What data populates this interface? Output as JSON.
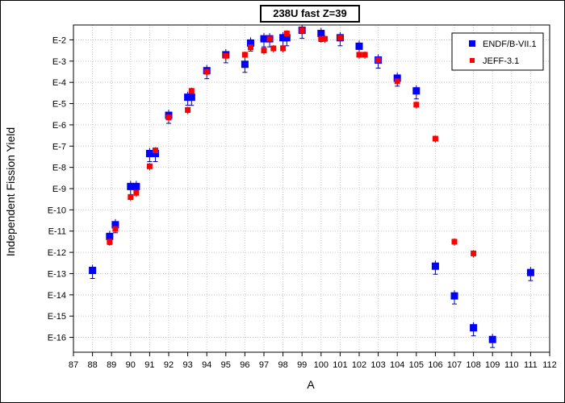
{
  "chart_data": {
    "type": "scatter",
    "title": "238U fast Z=39",
    "xlabel": "A",
    "ylabel": "Independent Fission Yield",
    "xlim": [
      87,
      112
    ],
    "ylim_log10": [
      -16.7,
      -1.3
    ],
    "y_scale": "log",
    "x_ticks": [
      "87",
      "88",
      "89",
      "90",
      "91",
      "92",
      "93",
      "94",
      "95",
      "96",
      "97",
      "98",
      "99",
      "100",
      "101",
      "102",
      "103",
      "104",
      "105",
      "106",
      "107",
      "108",
      "109",
      "110",
      "111",
      "112"
    ],
    "y_ticks": [
      "E-2",
      "E-3",
      "E-4",
      "E-5",
      "E-6",
      "E-7",
      "E-8",
      "E-9",
      "E-10",
      "E-11",
      "E-12",
      "E-13",
      "E-14",
      "E-15",
      "E-16"
    ],
    "legend_position": "top-right",
    "grid": true,
    "series": [
      {
        "name": "ENDF/B-VII.1",
        "color": "#0000ff",
        "marker": "square",
        "points": [
          {
            "x": 88,
            "log10y": -12.85
          },
          {
            "x": 88.9,
            "log10y": -11.25
          },
          {
            "x": 89.2,
            "log10y": -10.7
          },
          {
            "x": 90,
            "log10y": -8.9
          },
          {
            "x": 90.3,
            "log10y": -8.9
          },
          {
            "x": 91,
            "log10y": -7.35
          },
          {
            "x": 91.3,
            "log10y": -7.35
          },
          {
            "x": 92,
            "log10y": -5.55
          },
          {
            "x": 93,
            "log10y": -4.7
          },
          {
            "x": 93.2,
            "log10y": -4.7
          },
          {
            "x": 94,
            "log10y": -3.45
          },
          {
            "x": 95,
            "log10y": -2.7
          },
          {
            "x": 96,
            "log10y": -3.15
          },
          {
            "x": 96.3,
            "log10y": -2.15
          },
          {
            "x": 97,
            "log10y": -1.95
          },
          {
            "x": 97.3,
            "log10y": -1.95
          },
          {
            "x": 98,
            "log10y": -1.9
          },
          {
            "x": 98.2,
            "log10y": -1.9
          },
          {
            "x": 99,
            "log10y": -1.55
          },
          {
            "x": 100,
            "log10y": -1.7
          },
          {
            "x": 101,
            "log10y": -1.9
          },
          {
            "x": 102,
            "log10y": -2.3
          },
          {
            "x": 103,
            "log10y": -2.95
          },
          {
            "x": 104,
            "log10y": -3.8
          },
          {
            "x": 105,
            "log10y": -4.4
          },
          {
            "x": 106,
            "log10y": -12.65
          },
          {
            "x": 107,
            "log10y": -14.05
          },
          {
            "x": 108,
            "log10y": -15.55
          },
          {
            "x": 109,
            "log10y": -16.1
          },
          {
            "x": 111,
            "log10y": -12.95
          }
        ]
      },
      {
        "name": "JEFF-3.1",
        "color": "#ff0000",
        "marker": "square",
        "points": [
          {
            "x": 88.9,
            "log10y": -11.5
          },
          {
            "x": 89.2,
            "log10y": -10.9
          },
          {
            "x": 90,
            "log10y": -9.4
          },
          {
            "x": 90.3,
            "log10y": -9.2
          },
          {
            "x": 91,
            "log10y": -7.95
          },
          {
            "x": 91.3,
            "log10y": -7.2
          },
          {
            "x": 92,
            "log10y": -5.65
          },
          {
            "x": 93,
            "log10y": -5.3
          },
          {
            "x": 93.2,
            "log10y": -4.4
          },
          {
            "x": 94,
            "log10y": -3.5
          },
          {
            "x": 95,
            "log10y": -2.75
          },
          {
            "x": 96,
            "log10y": -2.7
          },
          {
            "x": 96.3,
            "log10y": -2.35
          },
          {
            "x": 97,
            "log10y": -2.5
          },
          {
            "x": 97.3,
            "log10y": -1.95
          },
          {
            "x": 97.5,
            "log10y": -2.4
          },
          {
            "x": 98,
            "log10y": -2.4
          },
          {
            "x": 98.2,
            "log10y": -1.7
          },
          {
            "x": 99,
            "log10y": -1.55
          },
          {
            "x": 100,
            "log10y": -1.95
          },
          {
            "x": 100.2,
            "log10y": -1.95
          },
          {
            "x": 101,
            "log10y": -1.9
          },
          {
            "x": 102,
            "log10y": -2.7
          },
          {
            "x": 102.3,
            "log10y": -2.7
          },
          {
            "x": 103,
            "log10y": -2.95
          },
          {
            "x": 104,
            "log10y": -3.95
          },
          {
            "x": 105,
            "log10y": -5.05
          },
          {
            "x": 106,
            "log10y": -6.65
          },
          {
            "x": 107,
            "log10y": -11.5
          },
          {
            "x": 108,
            "log10y": -12.05
          }
        ]
      }
    ]
  }
}
